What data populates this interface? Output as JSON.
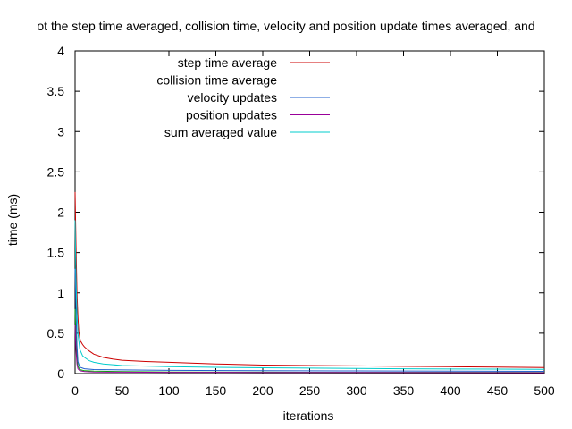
{
  "chart_data": {
    "type": "line",
    "title": "ot the step time averaged, collision time, velocity and position update times averaged, and",
    "xlabel": "iterations",
    "ylabel": "time (ms)",
    "xlim": [
      0,
      500
    ],
    "ylim": [
      0,
      4
    ],
    "x_ticks": [
      "0",
      "50",
      "100",
      "150",
      "200",
      "250",
      "300",
      "350",
      "400",
      "450",
      "500"
    ],
    "y_ticks": [
      "0",
      "0.5",
      "1",
      "1.5",
      "2",
      "2.5",
      "3",
      "3.5",
      "4"
    ],
    "grid": false,
    "legend_position": "top-left",
    "series": [
      {
        "name": "step time average",
        "color": "#cc0000",
        "points": [
          [
            0,
            2.25
          ],
          [
            1,
            1.6
          ],
          [
            2,
            1.0
          ],
          [
            3,
            0.7
          ],
          [
            4,
            0.52
          ],
          [
            5,
            0.44
          ],
          [
            6,
            0.4
          ],
          [
            8,
            0.36
          ],
          [
            10,
            0.33
          ],
          [
            15,
            0.28
          ],
          [
            20,
            0.24
          ],
          [
            30,
            0.2
          ],
          [
            40,
            0.18
          ],
          [
            50,
            0.165
          ],
          [
            75,
            0.15
          ],
          [
            100,
            0.14
          ],
          [
            150,
            0.12
          ],
          [
            200,
            0.105
          ],
          [
            250,
            0.1
          ],
          [
            300,
            0.095
          ],
          [
            350,
            0.09
          ],
          [
            400,
            0.085
          ],
          [
            450,
            0.08
          ],
          [
            500,
            0.075
          ]
        ]
      },
      {
        "name": "collision time average",
        "color": "#00aa00",
        "points": [
          [
            0,
            0.8
          ],
          [
            1,
            0.45
          ],
          [
            2,
            0.2
          ],
          [
            3,
            0.09
          ],
          [
            5,
            0.05
          ],
          [
            10,
            0.035
          ],
          [
            20,
            0.03
          ],
          [
            50,
            0.025
          ],
          [
            100,
            0.02
          ],
          [
            200,
            0.018
          ],
          [
            300,
            0.016
          ],
          [
            400,
            0.015
          ],
          [
            500,
            0.014
          ]
        ]
      },
      {
        "name": "velocity updates",
        "color": "#1f5fcc",
        "points": [
          [
            0,
            1.3
          ],
          [
            1,
            0.8
          ],
          [
            2,
            0.35
          ],
          [
            3,
            0.15
          ],
          [
            5,
            0.08
          ],
          [
            10,
            0.06
          ],
          [
            20,
            0.05
          ],
          [
            50,
            0.045
          ],
          [
            100,
            0.04
          ],
          [
            200,
            0.035
          ],
          [
            300,
            0.033
          ],
          [
            400,
            0.03
          ],
          [
            500,
            0.028
          ]
        ]
      },
      {
        "name": "position updates",
        "color": "#990099",
        "points": [
          [
            0,
            0.6
          ],
          [
            1,
            0.3
          ],
          [
            2,
            0.12
          ],
          [
            3,
            0.06
          ],
          [
            5,
            0.035
          ],
          [
            10,
            0.025
          ],
          [
            20,
            0.02
          ],
          [
            50,
            0.018
          ],
          [
            100,
            0.016
          ],
          [
            200,
            0.014
          ],
          [
            300,
            0.013
          ],
          [
            400,
            0.012
          ],
          [
            500,
            0.011
          ]
        ]
      },
      {
        "name": "sum averaged value",
        "color": "#00cccc",
        "points": [
          [
            0,
            1.9
          ],
          [
            1,
            1.2
          ],
          [
            2,
            0.75
          ],
          [
            3,
            0.5
          ],
          [
            5,
            0.3
          ],
          [
            8,
            0.22
          ],
          [
            10,
            0.2
          ],
          [
            15,
            0.16
          ],
          [
            20,
            0.14
          ],
          [
            30,
            0.12
          ],
          [
            50,
            0.1
          ],
          [
            100,
            0.085
          ],
          [
            150,
            0.078
          ],
          [
            200,
            0.072
          ],
          [
            250,
            0.068
          ],
          [
            300,
            0.064
          ],
          [
            350,
            0.06
          ],
          [
            400,
            0.057
          ],
          [
            450,
            0.055
          ],
          [
            500,
            0.053
          ]
        ]
      }
    ]
  }
}
